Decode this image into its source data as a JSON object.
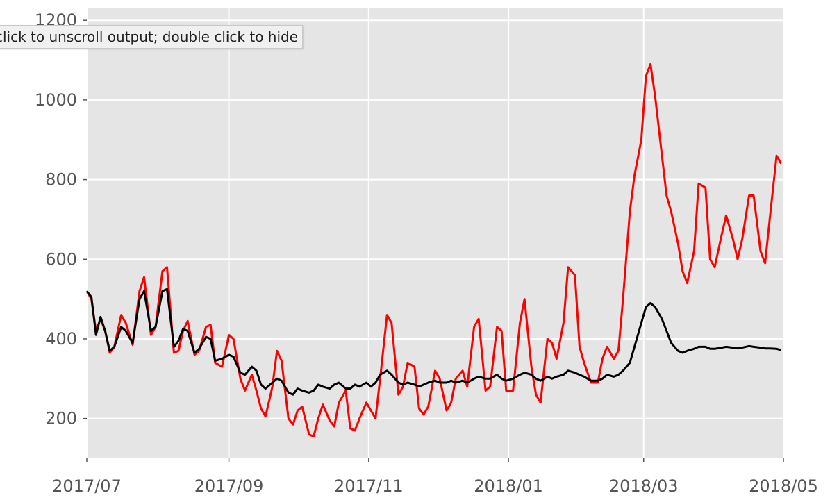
{
  "tooltip": {
    "text": "click to unscroll output; double click to hide"
  },
  "chart_data": {
    "type": "line",
    "title": "",
    "xlabel": "",
    "ylabel": "",
    "xlim": [
      "2017-07-01",
      "2018-05-01"
    ],
    "ylim": [
      100,
      1230
    ],
    "grid": true,
    "background": "#e5e5e5",
    "x_ticks": [
      {
        "date": "2017-07-01",
        "label": "2017/07"
      },
      {
        "date": "2017-09-01",
        "label": "2017/09"
      },
      {
        "date": "2017-11-01",
        "label": "2017/11"
      },
      {
        "date": "2018-01-01",
        "label": "2018/01"
      },
      {
        "date": "2018-03-01",
        "label": "2018/03"
      },
      {
        "date": "2018-05-01",
        "label": "2018/05"
      }
    ],
    "y_ticks": [
      200,
      400,
      600,
      800,
      1000,
      1200
    ],
    "series": [
      {
        "color": "#ff0000",
        "points": [
          [
            "2017-07-01",
            520
          ],
          [
            "2017-07-03",
            500
          ],
          [
            "2017-07-05",
            420
          ],
          [
            "2017-07-07",
            450
          ],
          [
            "2017-07-09",
            420
          ],
          [
            "2017-07-11",
            365
          ],
          [
            "2017-07-13",
            380
          ],
          [
            "2017-07-16",
            460
          ],
          [
            "2017-07-18",
            440
          ],
          [
            "2017-07-21",
            385
          ],
          [
            "2017-07-24",
            520
          ],
          [
            "2017-07-26",
            555
          ],
          [
            "2017-07-29",
            410
          ],
          [
            "2017-07-31",
            430
          ],
          [
            "2017-08-03",
            570
          ],
          [
            "2017-08-05",
            580
          ],
          [
            "2017-08-08",
            365
          ],
          [
            "2017-08-10",
            370
          ],
          [
            "2017-08-12",
            420
          ],
          [
            "2017-08-14",
            445
          ],
          [
            "2017-08-17",
            360
          ],
          [
            "2017-08-19",
            370
          ],
          [
            "2017-08-22",
            430
          ],
          [
            "2017-08-24",
            435
          ],
          [
            "2017-08-26",
            340
          ],
          [
            "2017-08-29",
            330
          ],
          [
            "2017-09-01",
            410
          ],
          [
            "2017-09-03",
            400
          ],
          [
            "2017-09-06",
            300
          ],
          [
            "2017-09-08",
            270
          ],
          [
            "2017-09-11",
            310
          ],
          [
            "2017-09-13",
            270
          ],
          [
            "2017-09-15",
            225
          ],
          [
            "2017-09-17",
            205
          ],
          [
            "2017-09-20",
            280
          ],
          [
            "2017-09-22",
            370
          ],
          [
            "2017-09-24",
            345
          ],
          [
            "2017-09-27",
            200
          ],
          [
            "2017-09-29",
            185
          ],
          [
            "2017-10-01",
            220
          ],
          [
            "2017-10-03",
            230
          ],
          [
            "2017-10-06",
            160
          ],
          [
            "2017-10-08",
            155
          ],
          [
            "2017-10-10",
            200
          ],
          [
            "2017-10-12",
            235
          ],
          [
            "2017-10-15",
            195
          ],
          [
            "2017-10-17",
            180
          ],
          [
            "2017-10-19",
            240
          ],
          [
            "2017-10-22",
            270
          ],
          [
            "2017-10-24",
            175
          ],
          [
            "2017-10-26",
            170
          ],
          [
            "2017-10-28",
            200
          ],
          [
            "2017-10-31",
            240
          ],
          [
            "2017-11-02",
            220
          ],
          [
            "2017-11-04",
            200
          ],
          [
            "2017-11-06",
            300
          ],
          [
            "2017-11-09",
            460
          ],
          [
            "2017-11-11",
            440
          ],
          [
            "2017-11-14",
            260
          ],
          [
            "2017-11-16",
            280
          ],
          [
            "2017-11-18",
            340
          ],
          [
            "2017-11-21",
            330
          ],
          [
            "2017-11-23",
            225
          ],
          [
            "2017-11-25",
            210
          ],
          [
            "2017-11-27",
            230
          ],
          [
            "2017-11-30",
            320
          ],
          [
            "2017-12-02",
            300
          ],
          [
            "2017-12-05",
            220
          ],
          [
            "2017-12-07",
            240
          ],
          [
            "2017-12-09",
            300
          ],
          [
            "2017-12-12",
            320
          ],
          [
            "2017-12-14",
            280
          ],
          [
            "2017-12-17",
            430
          ],
          [
            "2017-12-19",
            450
          ],
          [
            "2017-12-22",
            270
          ],
          [
            "2017-12-24",
            280
          ],
          [
            "2017-12-27",
            430
          ],
          [
            "2017-12-29",
            420
          ],
          [
            "2017-12-31",
            270
          ],
          [
            "2018-01-03",
            270
          ],
          [
            "2018-01-06",
            440
          ],
          [
            "2018-01-08",
            500
          ],
          [
            "2018-01-11",
            330
          ],
          [
            "2018-01-13",
            260
          ],
          [
            "2018-01-15",
            240
          ],
          [
            "2018-01-18",
            400
          ],
          [
            "2018-01-20",
            390
          ],
          [
            "2018-01-22",
            350
          ],
          [
            "2018-01-25",
            440
          ],
          [
            "2018-01-27",
            580
          ],
          [
            "2018-01-30",
            560
          ],
          [
            "2018-02-01",
            380
          ],
          [
            "2018-02-03",
            340
          ],
          [
            "2018-02-06",
            290
          ],
          [
            "2018-02-09",
            290
          ],
          [
            "2018-02-11",
            350
          ],
          [
            "2018-02-13",
            380
          ],
          [
            "2018-02-16",
            350
          ],
          [
            "2018-02-18",
            370
          ],
          [
            "2018-02-20",
            500
          ],
          [
            "2018-02-23",
            720
          ],
          [
            "2018-02-25",
            810
          ],
          [
            "2018-02-28",
            900
          ],
          [
            "2018-03-02",
            1060
          ],
          [
            "2018-03-04",
            1090
          ],
          [
            "2018-03-06",
            1010
          ],
          [
            "2018-03-09",
            860
          ],
          [
            "2018-03-11",
            760
          ],
          [
            "2018-03-13",
            720
          ],
          [
            "2018-03-16",
            640
          ],
          [
            "2018-03-18",
            570
          ],
          [
            "2018-03-20",
            540
          ],
          [
            "2018-03-23",
            620
          ],
          [
            "2018-03-25",
            790
          ],
          [
            "2018-03-28",
            780
          ],
          [
            "2018-03-30",
            600
          ],
          [
            "2018-04-01",
            580
          ],
          [
            "2018-04-04",
            660
          ],
          [
            "2018-04-06",
            710
          ],
          [
            "2018-04-09",
            650
          ],
          [
            "2018-04-11",
            600
          ],
          [
            "2018-04-13",
            650
          ],
          [
            "2018-04-16",
            760
          ],
          [
            "2018-04-18",
            760
          ],
          [
            "2018-04-21",
            620
          ],
          [
            "2018-04-23",
            590
          ],
          [
            "2018-04-25",
            700
          ],
          [
            "2018-04-28",
            860
          ],
          [
            "2018-04-30",
            840
          ]
        ]
      },
      {
        "color": "#000000",
        "points": [
          [
            "2017-07-01",
            520
          ],
          [
            "2017-07-03",
            505
          ],
          [
            "2017-07-05",
            410
          ],
          [
            "2017-07-07",
            455
          ],
          [
            "2017-07-09",
            420
          ],
          [
            "2017-07-11",
            370
          ],
          [
            "2017-07-13",
            380
          ],
          [
            "2017-07-16",
            430
          ],
          [
            "2017-07-18",
            420
          ],
          [
            "2017-07-21",
            390
          ],
          [
            "2017-07-24",
            500
          ],
          [
            "2017-07-26",
            520
          ],
          [
            "2017-07-29",
            420
          ],
          [
            "2017-07-31",
            430
          ],
          [
            "2017-08-03",
            520
          ],
          [
            "2017-08-05",
            525
          ],
          [
            "2017-08-08",
            380
          ],
          [
            "2017-08-10",
            395
          ],
          [
            "2017-08-12",
            425
          ],
          [
            "2017-08-14",
            420
          ],
          [
            "2017-08-17",
            365
          ],
          [
            "2017-08-19",
            375
          ],
          [
            "2017-08-22",
            405
          ],
          [
            "2017-08-24",
            400
          ],
          [
            "2017-08-26",
            345
          ],
          [
            "2017-08-29",
            350
          ],
          [
            "2017-09-01",
            360
          ],
          [
            "2017-09-03",
            355
          ],
          [
            "2017-09-06",
            315
          ],
          [
            "2017-09-08",
            310
          ],
          [
            "2017-09-11",
            330
          ],
          [
            "2017-09-13",
            320
          ],
          [
            "2017-09-15",
            285
          ],
          [
            "2017-09-17",
            275
          ],
          [
            "2017-09-20",
            290
          ],
          [
            "2017-09-22",
            300
          ],
          [
            "2017-09-24",
            295
          ],
          [
            "2017-09-27",
            265
          ],
          [
            "2017-09-29",
            260
          ],
          [
            "2017-10-01",
            275
          ],
          [
            "2017-10-03",
            270
          ],
          [
            "2017-10-06",
            265
          ],
          [
            "2017-10-08",
            270
          ],
          [
            "2017-10-10",
            285
          ],
          [
            "2017-10-12",
            280
          ],
          [
            "2017-10-15",
            275
          ],
          [
            "2017-10-17",
            285
          ],
          [
            "2017-10-19",
            290
          ],
          [
            "2017-10-22",
            275
          ],
          [
            "2017-10-24",
            275
          ],
          [
            "2017-10-26",
            285
          ],
          [
            "2017-10-28",
            280
          ],
          [
            "2017-10-31",
            290
          ],
          [
            "2017-11-02",
            280
          ],
          [
            "2017-11-04",
            290
          ],
          [
            "2017-11-06",
            310
          ],
          [
            "2017-11-09",
            320
          ],
          [
            "2017-11-11",
            310
          ],
          [
            "2017-11-14",
            290
          ],
          [
            "2017-11-16",
            285
          ],
          [
            "2017-11-18",
            290
          ],
          [
            "2017-11-21",
            285
          ],
          [
            "2017-11-23",
            280
          ],
          [
            "2017-11-25",
            285
          ],
          [
            "2017-11-27",
            290
          ],
          [
            "2017-11-30",
            295
          ],
          [
            "2017-12-02",
            290
          ],
          [
            "2017-12-05",
            290
          ],
          [
            "2017-12-07",
            295
          ],
          [
            "2017-12-09",
            290
          ],
          [
            "2017-12-12",
            295
          ],
          [
            "2017-12-14",
            290
          ],
          [
            "2017-12-17",
            300
          ],
          [
            "2017-12-19",
            305
          ],
          [
            "2017-12-22",
            300
          ],
          [
            "2017-12-24",
            300
          ],
          [
            "2017-12-27",
            310
          ],
          [
            "2017-12-29",
            300
          ],
          [
            "2017-12-31",
            295
          ],
          [
            "2018-01-03",
            300
          ],
          [
            "2018-01-06",
            310
          ],
          [
            "2018-01-08",
            315
          ],
          [
            "2018-01-11",
            310
          ],
          [
            "2018-01-13",
            300
          ],
          [
            "2018-01-15",
            295
          ],
          [
            "2018-01-18",
            305
          ],
          [
            "2018-01-20",
            300
          ],
          [
            "2018-01-22",
            305
          ],
          [
            "2018-01-25",
            310
          ],
          [
            "2018-01-27",
            320
          ],
          [
            "2018-01-30",
            315
          ],
          [
            "2018-02-01",
            310
          ],
          [
            "2018-02-03",
            305
          ],
          [
            "2018-02-06",
            295
          ],
          [
            "2018-02-09",
            295
          ],
          [
            "2018-02-11",
            300
          ],
          [
            "2018-02-13",
            310
          ],
          [
            "2018-02-16",
            305
          ],
          [
            "2018-02-18",
            310
          ],
          [
            "2018-02-20",
            320
          ],
          [
            "2018-02-23",
            340
          ],
          [
            "2018-02-25",
            380
          ],
          [
            "2018-02-28",
            440
          ],
          [
            "2018-03-02",
            480
          ],
          [
            "2018-03-04",
            490
          ],
          [
            "2018-03-06",
            480
          ],
          [
            "2018-03-09",
            450
          ],
          [
            "2018-03-11",
            420
          ],
          [
            "2018-03-13",
            390
          ],
          [
            "2018-03-16",
            370
          ],
          [
            "2018-03-18",
            365
          ],
          [
            "2018-03-20",
            370
          ],
          [
            "2018-03-23",
            375
          ],
          [
            "2018-03-25",
            380
          ],
          [
            "2018-03-28",
            380
          ],
          [
            "2018-03-30",
            375
          ],
          [
            "2018-04-01",
            375
          ],
          [
            "2018-04-04",
            378
          ],
          [
            "2018-04-06",
            380
          ],
          [
            "2018-04-09",
            378
          ],
          [
            "2018-04-11",
            376
          ],
          [
            "2018-04-13",
            378
          ],
          [
            "2018-04-16",
            382
          ],
          [
            "2018-04-18",
            380
          ],
          [
            "2018-04-21",
            378
          ],
          [
            "2018-04-23",
            376
          ],
          [
            "2018-04-25",
            376
          ],
          [
            "2018-04-28",
            375
          ],
          [
            "2018-04-30",
            372
          ]
        ]
      }
    ]
  }
}
